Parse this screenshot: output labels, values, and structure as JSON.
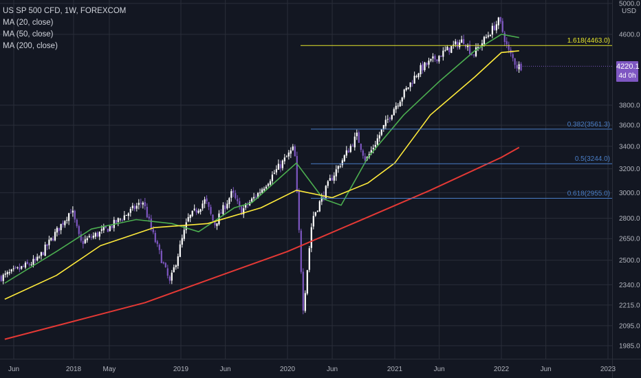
{
  "legend": {
    "symbol": "US SP 500 CFD, 1W, FOREXCOM",
    "ma20": "MA (20, close)",
    "ma50": "MA (50, close)",
    "ma200": "MA (200, close)"
  },
  "currency": "USD",
  "current_price": {
    "value": "4220.1",
    "countdown": "4d 0h"
  },
  "colors": {
    "background": "#131722",
    "grid": "#2a2e39",
    "bull_candle": "#ffffff",
    "bear_candle": "#7e57c2",
    "ma20": "#4caf50",
    "ma50": "#ffeb3b",
    "ma200": "#e53935",
    "fib_extension": "#e6e62a",
    "fib_retracement": "#4a7ec7",
    "axis_text": "#b2b5be"
  },
  "chart_data": {
    "type": "candlestick",
    "title": "US SP 500 CFD, 1W, FOREXCOM",
    "y_scale": "log",
    "ylim": [
      1900,
      5050
    ],
    "y_ticks": [
      5000.0,
      4600.0,
      3800.0,
      3600.0,
      3400.0,
      3200.0,
      3000.0,
      2800.0,
      2650.0,
      2500.0,
      2340.0,
      2215.0,
      2095.0,
      1985.0
    ],
    "x_ticks": [
      "Jun",
      "2018",
      "May",
      "2019",
      "Jun",
      "2020",
      "Jun",
      "2021",
      "Jun",
      "2022",
      "Jun",
      "2023"
    ],
    "grid": true,
    "price_path": [
      {
        "date": "2017-05",
        "price": 2390
      },
      {
        "date": "2017-09",
        "price": 2500
      },
      {
        "date": "2018-01",
        "price": 2870
      },
      {
        "date": "2018-02",
        "price": 2620
      },
      {
        "date": "2018-05",
        "price": 2720
      },
      {
        "date": "2018-09",
        "price": 2930
      },
      {
        "date": "2018-10",
        "price": 2700
      },
      {
        "date": "2018-12",
        "price": 2350
      },
      {
        "date": "2019-02",
        "price": 2790
      },
      {
        "date": "2019-04",
        "price": 2940
      },
      {
        "date": "2019-05",
        "price": 2750
      },
      {
        "date": "2019-07",
        "price": 3000
      },
      {
        "date": "2019-08",
        "price": 2850
      },
      {
        "date": "2019-10",
        "price": 3000
      },
      {
        "date": "2020-02",
        "price": 3390
      },
      {
        "date": "2020-03",
        "price": 2190
      },
      {
        "date": "2020-04",
        "price": 2800
      },
      {
        "date": "2020-06",
        "price": 3100
      },
      {
        "date": "2020-09",
        "price": 3500
      },
      {
        "date": "2020-10",
        "price": 3270
      },
      {
        "date": "2021-01",
        "price": 3750
      },
      {
        "date": "2021-04",
        "price": 4180
      },
      {
        "date": "2021-07",
        "price": 4400
      },
      {
        "date": "2021-09",
        "price": 4530
      },
      {
        "date": "2021-10",
        "price": 4350
      },
      {
        "date": "2022-01",
        "price": 4780
      },
      {
        "date": "2022-02",
        "price": 4400
      },
      {
        "date": "2022-03",
        "price": 4220
      }
    ],
    "ma_series": [
      {
        "name": "MA (20, close)",
        "points": [
          {
            "date": "2017-05",
            "price": 2350
          },
          {
            "date": "2017-11",
            "price": 2560
          },
          {
            "date": "2018-03",
            "price": 2720
          },
          {
            "date": "2018-08",
            "price": 2790
          },
          {
            "date": "2018-12",
            "price": 2760
          },
          {
            "date": "2019-03",
            "price": 2700
          },
          {
            "date": "2019-07",
            "price": 2880
          },
          {
            "date": "2019-09",
            "price": 2920
          },
          {
            "date": "2020-02",
            "price": 3250
          },
          {
            "date": "2020-05",
            "price": 2950
          },
          {
            "date": "2020-07",
            "price": 2900
          },
          {
            "date": "2020-10",
            "price": 3300
          },
          {
            "date": "2021-02",
            "price": 3700
          },
          {
            "date": "2021-06",
            "price": 4050
          },
          {
            "date": "2021-10",
            "price": 4400
          },
          {
            "date": "2022-01",
            "price": 4600
          },
          {
            "date": "2022-03",
            "price": 4560
          }
        ]
      },
      {
        "name": "MA (50, close)",
        "points": [
          {
            "date": "2017-05",
            "price": 2250
          },
          {
            "date": "2017-11",
            "price": 2400
          },
          {
            "date": "2018-04",
            "price": 2600
          },
          {
            "date": "2018-10",
            "price": 2730
          },
          {
            "date": "2019-04",
            "price": 2760
          },
          {
            "date": "2019-10",
            "price": 2880
          },
          {
            "date": "2020-02",
            "price": 3020
          },
          {
            "date": "2020-06",
            "price": 2960
          },
          {
            "date": "2020-10",
            "price": 3080
          },
          {
            "date": "2021-01",
            "price": 3250
          },
          {
            "date": "2021-05",
            "price": 3700
          },
          {
            "date": "2021-10",
            "price": 4100
          },
          {
            "date": "2022-01",
            "price": 4380
          },
          {
            "date": "2022-03",
            "price": 4400
          }
        ]
      },
      {
        "name": "MA (200, close)",
        "points": [
          {
            "date": "2017-05",
            "price": 2020
          },
          {
            "date": "2018-01",
            "price": 2120
          },
          {
            "date": "2018-09",
            "price": 2230
          },
          {
            "date": "2019-05",
            "price": 2390
          },
          {
            "date": "2020-01",
            "price": 2560
          },
          {
            "date": "2020-09",
            "price": 2780
          },
          {
            "date": "2021-05",
            "price": 3020
          },
          {
            "date": "2022-01",
            "price": 3300
          },
          {
            "date": "2022-03",
            "price": 3390
          }
        ]
      }
    ],
    "fib_levels": [
      {
        "label": "1.618(4463.0)",
        "value": 4463.0,
        "kind": "extension",
        "start": "2020-06"
      },
      {
        "label": "0.382(3561.3)",
        "value": 3561.3,
        "kind": "retracement",
        "start": "2020-07"
      },
      {
        "label": "0.5(3244.0)",
        "value": 3244.0,
        "kind": "retracement",
        "start": "2020-07"
      },
      {
        "label": "0.618(2955.0)",
        "value": 2955.0,
        "kind": "retracement",
        "start": "2020-07"
      }
    ]
  }
}
